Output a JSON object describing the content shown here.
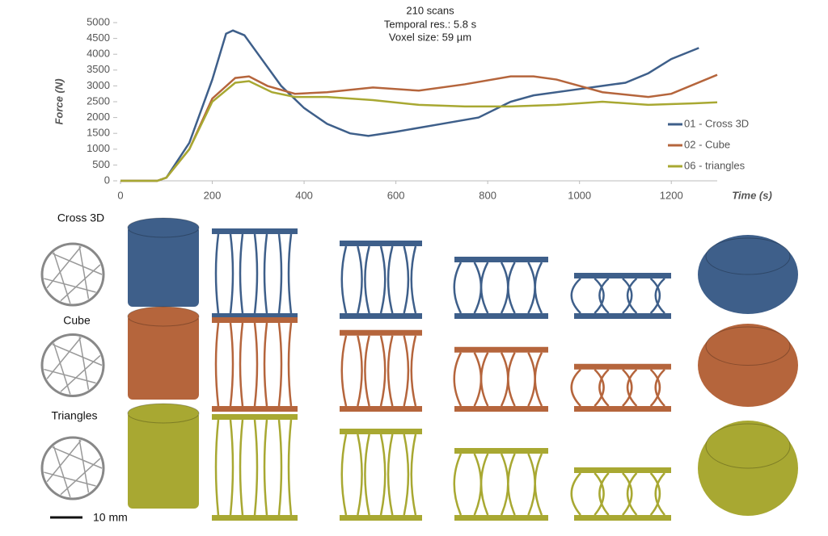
{
  "chart_data": {
    "type": "line",
    "annotations": [
      "210 scans",
      "Temporal res.: 5.8 s",
      "Voxel size: 59 µm"
    ],
    "ylabel": "Force (N)",
    "xlabel": "Time (s)",
    "xlim": [
      0,
      1300
    ],
    "xticks": [
      0,
      200,
      400,
      600,
      800,
      1000,
      1200
    ],
    "ylim": [
      0,
      5000
    ],
    "yticks": [
      0,
      500,
      1000,
      1500,
      2000,
      2500,
      3000,
      3500,
      4000,
      4500,
      5000
    ],
    "legend": "right",
    "series": [
      {
        "name": "01 - Cross 3D",
        "color": "#3e5f8a",
        "x": [
          0,
          80,
          100,
          150,
          200,
          230,
          245,
          270,
          300,
          350,
          400,
          450,
          500,
          540,
          600,
          700,
          780,
          850,
          900,
          1000,
          1050,
          1100,
          1150,
          1200,
          1260
        ],
        "values": [
          0,
          0,
          100,
          1200,
          3200,
          4650,
          4750,
          4600,
          4000,
          3000,
          2300,
          1800,
          1500,
          1420,
          1550,
          1800,
          2000,
          2500,
          2700,
          2900,
          3000,
          3100,
          3400,
          3850,
          4200
        ]
      },
      {
        "name": "02 - Cube",
        "color": "#b5653c",
        "x": [
          0,
          80,
          100,
          150,
          200,
          250,
          280,
          320,
          380,
          450,
          550,
          650,
          750,
          850,
          900,
          950,
          1050,
          1150,
          1200,
          1300
        ],
        "values": [
          0,
          0,
          100,
          1000,
          2600,
          3250,
          3300,
          3000,
          2750,
          2800,
          2950,
          2850,
          3050,
          3300,
          3300,
          3200,
          2800,
          2650,
          2750,
          3350
        ]
      },
      {
        "name": "06 - triangles",
        "color": "#a8a832",
        "x": [
          0,
          80,
          100,
          150,
          200,
          250,
          280,
          330,
          380,
          450,
          550,
          650,
          750,
          850,
          950,
          1050,
          1150,
          1250,
          1300
        ],
        "values": [
          0,
          0,
          100,
          1000,
          2500,
          3100,
          3150,
          2800,
          2650,
          2650,
          2550,
          2400,
          2350,
          2350,
          2400,
          2500,
          2400,
          2450,
          2480
        ]
      }
    ]
  },
  "panels": {
    "rows": [
      "Cross 3D",
      "Cube",
      "Triangles"
    ],
    "scale_bar": "10 mm"
  }
}
